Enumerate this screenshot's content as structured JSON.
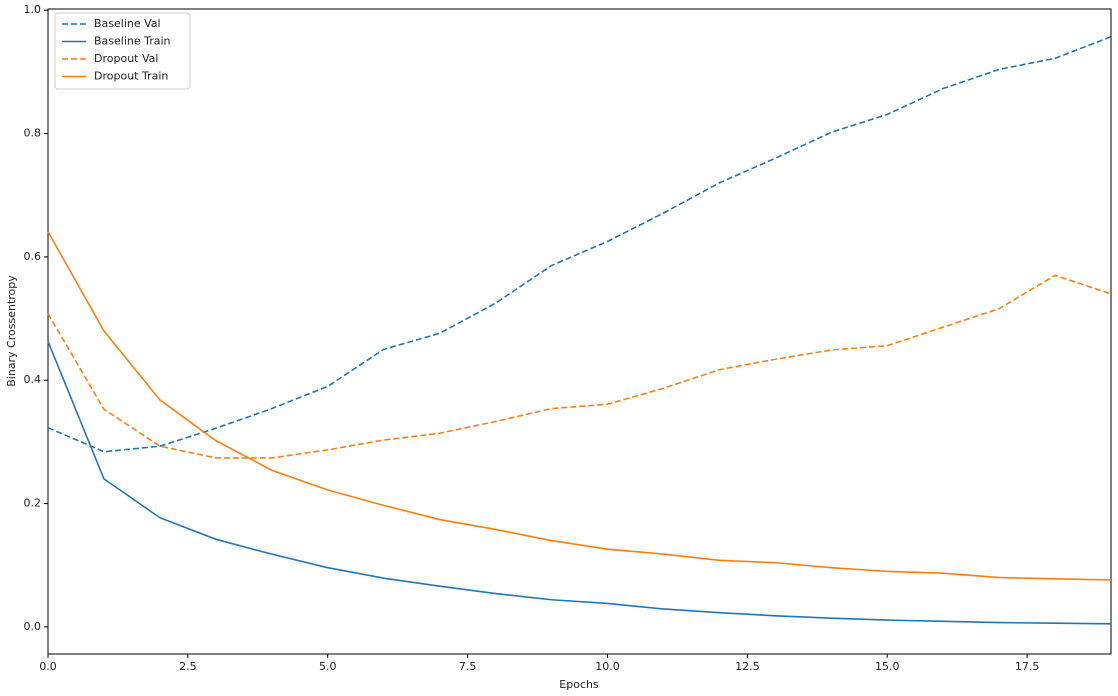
{
  "chart_data": {
    "type": "line",
    "xlabel": "Epochs",
    "ylabel": "Binary Crossentropy",
    "x": [
      0,
      1,
      2,
      3,
      4,
      5,
      6,
      7,
      8,
      9,
      10,
      11,
      12,
      13,
      14,
      15,
      16,
      17,
      18,
      19
    ],
    "series": [
      {
        "name": "Baseline Val",
        "color": "#1f77b4",
        "linestyle": "dashed",
        "values": [
          0.323,
          0.284,
          0.293,
          0.322,
          0.354,
          0.39,
          0.45,
          0.476,
          0.525,
          0.586,
          0.625,
          0.671,
          0.72,
          0.76,
          0.802,
          0.831,
          0.873,
          0.904,
          0.922,
          0.957
        ]
      },
      {
        "name": "Baseline Train",
        "color": "#1f77b4",
        "linestyle": "solid",
        "values": [
          0.463,
          0.24,
          0.177,
          0.142,
          0.118,
          0.096,
          0.079,
          0.066,
          0.054,
          0.044,
          0.038,
          0.029,
          0.023,
          0.018,
          0.014,
          0.011,
          0.009,
          0.007,
          0.006,
          0.005
        ]
      },
      {
        "name": "Dropout Val",
        "color": "#ff7f0e",
        "linestyle": "dashed",
        "values": [
          0.508,
          0.353,
          0.293,
          0.274,
          0.274,
          0.287,
          0.303,
          0.314,
          0.333,
          0.354,
          0.361,
          0.387,
          0.417,
          0.434,
          0.449,
          0.456,
          0.486,
          0.516,
          0.57,
          0.54
        ]
      },
      {
        "name": "Dropout Train",
        "color": "#ff7f0e",
        "linestyle": "solid",
        "values": [
          0.641,
          0.48,
          0.368,
          0.302,
          0.254,
          0.222,
          0.197,
          0.174,
          0.158,
          0.14,
          0.126,
          0.118,
          0.108,
          0.104,
          0.096,
          0.09,
          0.087,
          0.08,
          0.078,
          0.076
        ]
      }
    ],
    "xlim": [
      0,
      19
    ],
    "xticks": [
      {
        "value": 0,
        "label": "0.0"
      },
      2.5,
      {
        "value": 5,
        "label": "5.0"
      },
      7.5,
      {
        "value": 10,
        "label": "10.0"
      },
      12.5,
      {
        "value": 15,
        "label": "15.0"
      },
      17.5
    ],
    "ylim": [
      -0.044,
      1.002
    ],
    "yticks": [
      {
        "value": 0,
        "label": "0.0"
      },
      0.2,
      0.4,
      0.6,
      0.8,
      {
        "value": 1,
        "label": "1.0"
      }
    ],
    "legend": "upper left",
    "grid": false
  }
}
